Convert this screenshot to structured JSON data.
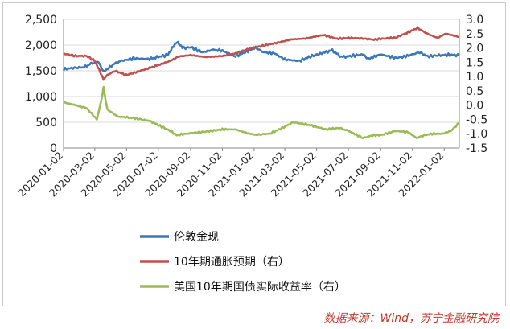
{
  "chart_data": {
    "type": "line",
    "title": "",
    "xlabel": "",
    "ylabel": "",
    "x_ticks": [
      "2020-01-02",
      "2020-03-02",
      "2020-05-02",
      "2020-07-02",
      "2020-09-02",
      "2020-11-02",
      "2021-01-02",
      "2021-03-02",
      "2021-05-02",
      "2021-07-02",
      "2021-09-02",
      "2021-11-02",
      "2022-01-02"
    ],
    "y_left": {
      "range": [
        0,
        2500
      ],
      "ticks": [
        "0",
        "500",
        "1,000",
        "1,500",
        "2,000",
        "2,500"
      ]
    },
    "y_right": {
      "range": [
        -1.5,
        3.0
      ],
      "ticks": [
        "-1.5",
        "-1.0",
        "-0.5",
        "0.0",
        "0.5",
        "1.0",
        "1.5",
        "2.0",
        "2.5",
        "3.0"
      ]
    },
    "grid": "horizontal",
    "legend_position": "bottom",
    "series": [
      {
        "name": "伦敦金现",
        "axis": "left",
        "color": "#3a78b8",
        "points": [
          [
            "2020-01-02",
            1530
          ],
          [
            "2020-01-20",
            1555
          ],
          [
            "2020-02-10",
            1570
          ],
          [
            "2020-02-24",
            1640
          ],
          [
            "2020-03-09",
            1670
          ],
          [
            "2020-03-19",
            1480
          ],
          [
            "2020-04-06",
            1620
          ],
          [
            "2020-04-20",
            1690
          ],
          [
            "2020-05-15",
            1740
          ],
          [
            "2020-06-15",
            1730
          ],
          [
            "2020-07-02",
            1770
          ],
          [
            "2020-07-20",
            1810
          ],
          [
            "2020-08-06",
            2060
          ],
          [
            "2020-08-20",
            1940
          ],
          [
            "2020-09-02",
            1960
          ],
          [
            "2020-09-25",
            1860
          ],
          [
            "2020-10-15",
            1910
          ],
          [
            "2020-11-02",
            1890
          ],
          [
            "2020-11-27",
            1780
          ],
          [
            "2020-12-15",
            1860
          ],
          [
            "2021-01-05",
            1950
          ],
          [
            "2021-01-20",
            1860
          ],
          [
            "2021-02-10",
            1840
          ],
          [
            "2021-03-02",
            1720
          ],
          [
            "2021-03-30",
            1690
          ],
          [
            "2021-04-20",
            1780
          ],
          [
            "2021-05-15",
            1850
          ],
          [
            "2021-06-01",
            1900
          ],
          [
            "2021-06-18",
            1770
          ],
          [
            "2021-07-02",
            1780
          ],
          [
            "2021-07-30",
            1820
          ],
          [
            "2021-08-09",
            1730
          ],
          [
            "2021-09-02",
            1820
          ],
          [
            "2021-09-30",
            1750
          ],
          [
            "2021-10-20",
            1780
          ],
          [
            "2021-11-16",
            1860
          ],
          [
            "2021-12-01",
            1780
          ],
          [
            "2021-12-20",
            1800
          ],
          [
            "2022-01-10",
            1810
          ],
          [
            "2022-01-31",
            1800
          ]
        ]
      },
      {
        "name": "10年期通胀预期（右）",
        "axis": "right",
        "color": "#c0504d",
        "points": [
          [
            "2020-01-02",
            1.8
          ],
          [
            "2020-01-25",
            1.72
          ],
          [
            "2020-02-15",
            1.72
          ],
          [
            "2020-03-02",
            1.55
          ],
          [
            "2020-03-19",
            0.9
          ],
          [
            "2020-03-26",
            1.05
          ],
          [
            "2020-04-10",
            1.2
          ],
          [
            "2020-05-01",
            1.05
          ],
          [
            "2020-05-20",
            1.15
          ],
          [
            "2020-06-15",
            1.3
          ],
          [
            "2020-07-02",
            1.4
          ],
          [
            "2020-07-25",
            1.55
          ],
          [
            "2020-08-10",
            1.7
          ],
          [
            "2020-09-02",
            1.75
          ],
          [
            "2020-10-01",
            1.68
          ],
          [
            "2020-11-02",
            1.72
          ],
          [
            "2020-11-25",
            1.8
          ],
          [
            "2020-12-20",
            1.95
          ],
          [
            "2021-01-05",
            2.02
          ],
          [
            "2021-01-25",
            2.1
          ],
          [
            "2021-02-20",
            2.2
          ],
          [
            "2021-03-15",
            2.3
          ],
          [
            "2021-04-10",
            2.33
          ],
          [
            "2021-05-15",
            2.45
          ],
          [
            "2021-06-10",
            2.32
          ],
          [
            "2021-07-02",
            2.35
          ],
          [
            "2021-07-30",
            2.33
          ],
          [
            "2021-08-20",
            2.29
          ],
          [
            "2021-09-02",
            2.32
          ],
          [
            "2021-10-01",
            2.36
          ],
          [
            "2021-10-25",
            2.55
          ],
          [
            "2021-11-12",
            2.7
          ],
          [
            "2021-11-30",
            2.5
          ],
          [
            "2021-12-20",
            2.35
          ],
          [
            "2022-01-05",
            2.5
          ],
          [
            "2022-01-31",
            2.38
          ]
        ]
      },
      {
        "name": "美国10年期国债实际收益率（右）",
        "axis": "right",
        "color": "#9bbb59",
        "points": [
          [
            "2020-01-02",
            0.1
          ],
          [
            "2020-01-25",
            0.0
          ],
          [
            "2020-02-15",
            -0.1
          ],
          [
            "2020-03-06",
            -0.5
          ],
          [
            "2020-03-13",
            0.05
          ],
          [
            "2020-03-19",
            0.6
          ],
          [
            "2020-03-26",
            -0.15
          ],
          [
            "2020-04-15",
            -0.4
          ],
          [
            "2020-05-15",
            -0.45
          ],
          [
            "2020-06-15",
            -0.55
          ],
          [
            "2020-07-02",
            -0.7
          ],
          [
            "2020-07-25",
            -0.9
          ],
          [
            "2020-08-06",
            -1.05
          ],
          [
            "2020-09-02",
            -0.98
          ],
          [
            "2020-10-01",
            -0.93
          ],
          [
            "2020-11-02",
            -0.85
          ],
          [
            "2020-11-27",
            -0.85
          ],
          [
            "2020-12-20",
            -0.98
          ],
          [
            "2021-01-05",
            -1.04
          ],
          [
            "2021-02-01",
            -1.0
          ],
          [
            "2021-02-25",
            -0.8
          ],
          [
            "2021-03-18",
            -0.6
          ],
          [
            "2021-04-20",
            -0.7
          ],
          [
            "2021-05-20",
            -0.85
          ],
          [
            "2021-06-15",
            -0.8
          ],
          [
            "2021-07-02",
            -0.9
          ],
          [
            "2021-07-30",
            -1.15
          ],
          [
            "2021-08-20",
            -1.05
          ],
          [
            "2021-09-02",
            -1.05
          ],
          [
            "2021-10-01",
            -0.9
          ],
          [
            "2021-10-25",
            -0.95
          ],
          [
            "2021-11-10",
            -1.15
          ],
          [
            "2021-11-25",
            -1.05
          ],
          [
            "2021-12-10",
            -1.0
          ],
          [
            "2021-12-30",
            -1.0
          ],
          [
            "2022-01-15",
            -0.9
          ],
          [
            "2022-01-31",
            -0.62
          ]
        ]
      }
    ]
  },
  "source_note": "数据来源：Wind，苏宁金融研究院"
}
